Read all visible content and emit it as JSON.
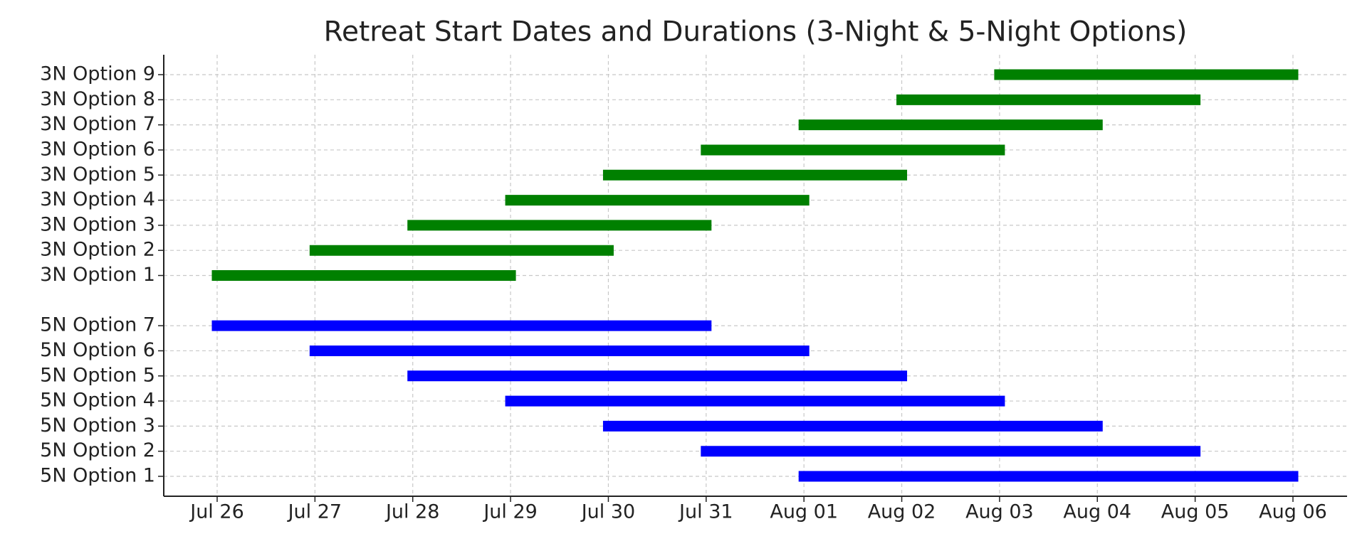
{
  "chart_data": {
    "type": "gantt",
    "title": "Retreat Start Dates and Durations (3-Night & 5-Night Options)",
    "xticks": [
      "Jul 26",
      "Jul 27",
      "Jul 28",
      "Jul 29",
      "Jul 30",
      "Jul 31",
      "Aug 01",
      "Aug 02",
      "Aug 03",
      "Aug 04",
      "Aug 05",
      "Aug 06"
    ],
    "grid": true,
    "series": [
      {
        "color": "#008000",
        "labels": [
          "3N Option 1",
          "3N Option 2",
          "3N Option 3",
          "3N Option 4",
          "3N Option 5",
          "3N Option 6",
          "3N Option 7",
          "3N Option 8",
          "3N Option 9"
        ],
        "start": [
          "Jul 26",
          "Jul 27",
          "Jul 28",
          "Jul 29",
          "Jul 30",
          "Jul 31",
          "Aug 01",
          "Aug 02",
          "Aug 03"
        ],
        "end": [
          "Jul 29",
          "Jul 30",
          "Jul 31",
          "Aug 01",
          "Aug 02",
          "Aug 03",
          "Aug 04",
          "Aug 05",
          "Aug 06"
        ]
      },
      {
        "color": "#0000ff",
        "labels": [
          "5N Option 1",
          "5N Option 2",
          "5N Option 3",
          "5N Option 4",
          "5N Option 5",
          "5N Option 6",
          "5N Option 7"
        ],
        "start": [
          "Aug 01",
          "Jul 31",
          "Jul 30",
          "Jul 29",
          "Jul 28",
          "Jul 27",
          "Jul 26"
        ],
        "end": [
          "Aug 06",
          "Aug 05",
          "Aug 04",
          "Aug 03",
          "Aug 02",
          "Aug 01",
          "Jul 31"
        ]
      }
    ]
  }
}
